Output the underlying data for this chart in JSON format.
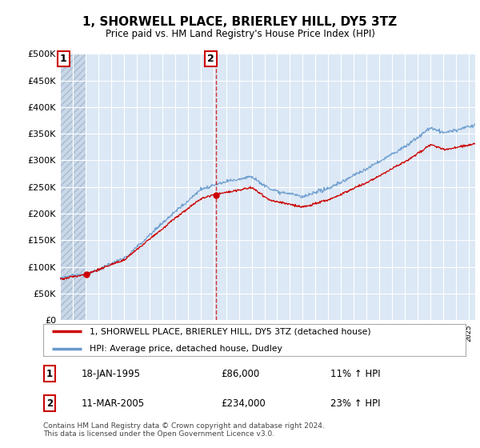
{
  "title": "1, SHORWELL PLACE, BRIERLEY HILL, DY5 3TZ",
  "subtitle": "Price paid vs. HM Land Registry's House Price Index (HPI)",
  "legend_line1": "1, SHORWELL PLACE, BRIERLEY HILL, DY5 3TZ (detached house)",
  "legend_line2": "HPI: Average price, detached house, Dudley",
  "annotation1_label": "1",
  "annotation1_date": "18-JAN-1995",
  "annotation1_price": "£86,000",
  "annotation1_hpi": "11% ↑ HPI",
  "annotation1_year": 1995.05,
  "annotation1_value": 86000,
  "annotation2_label": "2",
  "annotation2_date": "11-MAR-2005",
  "annotation2_price": "£234,000",
  "annotation2_hpi": "23% ↑ HPI",
  "annotation2_year": 2005.2,
  "annotation2_value": 234000,
  "hpi_color": "#6699cc",
  "price_color": "#cc0000",
  "ylim": [
    0,
    500000
  ],
  "yticks": [
    0,
    50000,
    100000,
    150000,
    200000,
    250000,
    300000,
    350000,
    400000,
    450000,
    500000
  ],
  "footer": "Contains HM Land Registry data © Crown copyright and database right 2024.\nThis data is licensed under the Open Government Licence v3.0.",
  "background_color": "#ffffff",
  "plot_bg_color": "#dce8f5",
  "grid_color": "#ffffff",
  "hatch_color": "#c8d8e8"
}
